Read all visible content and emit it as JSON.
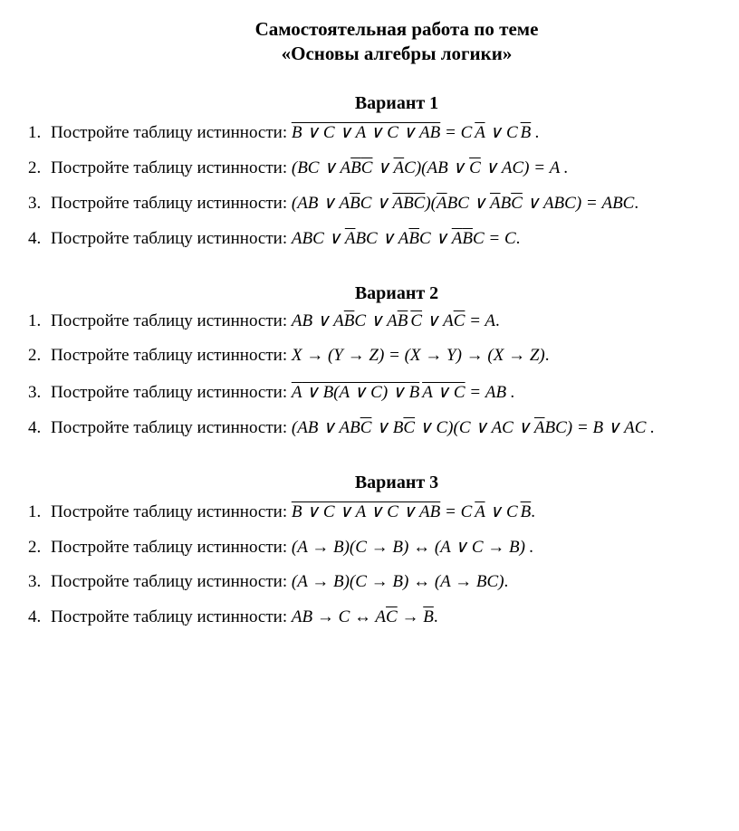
{
  "title": "Самостоятельная работа по теме",
  "subtitle": "«Основы алгебры логики»",
  "variants": {
    "v1": {
      "heading": "Вариант 1",
      "t1": {
        "num": "1.",
        "prompt": "Постройте таблицу истинности:",
        "f": "<span class='ovd'><span class='ov'>B ∨ C</span> ∨ <span class='ov'>A ∨ C</span> ∨ AB</span> = C<span class='sp'></span><span class='ov'>A</span> ∨ C<span class='sp'></span><span class='ov'>B</span> ."
      },
      "t2": {
        "num": "2.",
        "prompt": "Постройте таблицу истинности:",
        "f": "(BC ∨ A<span class='ov'>B</span><span class='ov'>C</span> ∨ <span class='ov'>A</span>C)(AB ∨ <span class='ov'>C</span> ∨ AC) = A ."
      },
      "t3": {
        "num": "3.",
        "prompt": "Постройте таблицу истинности:",
        "f": "(AB ∨ A<span class='ov'>B</span>C ∨ <span class='ov'>A</span><span class='ov'>B</span><span class='ov'>C</span>)(<span class='ov'>A</span>BC ∨ <span class='ov'>A</span>B<span class='ov'>C</span> ∨ ABC) = ABC<span class='punct'>.</span>"
      },
      "t4": {
        "num": "4.",
        "prompt": "Постройте таблицу истинности:",
        "f": "ABC ∨ <span class='ov'>A</span>BC ∨ A<span class='ov'>B</span>C ∨ <span class='ov'>A</span><span class='ov'>B</span>C = C<span class='punct'>.</span>"
      }
    },
    "v2": {
      "heading": "Вариант 2",
      "t1": {
        "num": "1.",
        "prompt": "Постройте таблицу истинности:",
        "f": "AB ∨ A<span class='ov'>B</span>C ∨ A<span class='ov'>B</span><span class='sp'></span><span class='ov'>C</span> ∨ A<span class='ov'>C</span> = A<span class='punct'>.</span>"
      },
      "t2": {
        "num": "2.",
        "prompt": "Постройте таблицу истинности:",
        "f": "X → (Y → Z) = (X → Y) → (X → Z)<span class='punct'>.</span>"
      },
      "t3": {
        "num": "3.",
        "prompt": "Постройте таблицу истинности:",
        "f": "<span class='ovd'><span class='ov'>A</span> ∨ <span class='ov'>B</span>(A ∨ C) ∨ B<span class='sp'></span><span class='ov'>A ∨ C</span></span> = AB ."
      },
      "t4": {
        "num": "4.",
        "prompt": "Постройте таблицу истинности:",
        "f": "(AB ∨ AB<span class='ov'>C</span> ∨ B<span class='ov'>C</span> ∨ C)(C ∨ AC ∨ <span class='ov'>A</span>BC) = B ∨ AC ."
      }
    },
    "v3": {
      "heading": "Вариант 3",
      "t1": {
        "num": "1.",
        "prompt": "Постройте таблицу истинности:",
        "f": "<span class='ovd'><span class='ov'>B ∨ C</span> ∨ <span class='ov'>A ∨ C</span> ∨ AB</span> = C<span class='sp'></span><span class='ov'>A</span> ∨ C<span class='sp'></span><span class='ov'>B</span><span class='punct'>.</span>"
      },
      "t2": {
        "num": "2.",
        "prompt": "Постройте таблицу истинности:",
        "f": "(A → B)(C → B) ↔ (A ∨ C → B) ."
      },
      "t3": {
        "num": "3.",
        "prompt": "Постройте таблицу истинности:",
        "f": "(A → B)(C → B) ↔ (A → BC)<span class='punct'>.</span>"
      },
      "t4": {
        "num": "4.",
        "prompt": "Постройте таблицу истинности:",
        "f": "AB → C ↔ A<span class='ov'>C</span> → <span class='ov'>B</span><span class='punct'>.</span>"
      }
    }
  },
  "styling": {
    "background_color": "#ffffff",
    "text_color": "#000000",
    "font_family": "Times New Roman",
    "title_fontsize": 21,
    "body_fontsize": 19,
    "variant_heading_fontsize": 20
  }
}
